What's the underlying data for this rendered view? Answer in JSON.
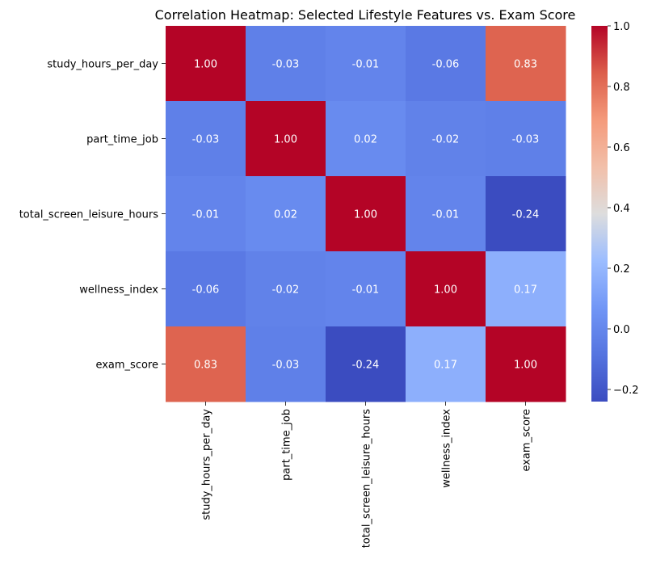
{
  "chart_data": {
    "type": "heatmap",
    "title": "Correlation Heatmap: Selected Lifestyle Features vs. Exam Score",
    "xlabel": "",
    "ylabel": "",
    "row_labels": [
      "study_hours_per_day",
      "part_time_job",
      "total_screen_leisure_hours",
      "wellness_index",
      "exam_score"
    ],
    "column_labels": [
      "study_hours_per_day",
      "part_time_job",
      "total_screen_leisure_hours",
      "wellness_index",
      "exam_score"
    ],
    "values": [
      [
        1.0,
        -0.03,
        -0.01,
        -0.06,
        0.83
      ],
      [
        -0.03,
        1.0,
        0.02,
        -0.02,
        -0.03
      ],
      [
        -0.01,
        0.02,
        1.0,
        -0.01,
        -0.24
      ],
      [
        -0.06,
        -0.02,
        -0.01,
        1.0,
        0.17
      ],
      [
        0.83,
        -0.03,
        -0.24,
        0.17,
        1.0
      ]
    ],
    "value_format": "0.00",
    "colormap": "coolwarm",
    "color_range": [
      -0.24,
      1.0
    ],
    "colorbar_ticks": [
      -0.2,
      0.0,
      0.2,
      0.4,
      0.6,
      0.8,
      1.0
    ],
    "colorbar_tick_labels": [
      "−0.2",
      "0.0",
      "0.2",
      "0.4",
      "0.6",
      "0.8",
      "1.0"
    ],
    "grid": false,
    "colors": {
      "low": "#3b4cc0",
      "mid": "#dddddd",
      "high": "#b40426",
      "text_light": "#ffffff",
      "text_dark": "#000000",
      "axis": "#000000"
    }
  }
}
